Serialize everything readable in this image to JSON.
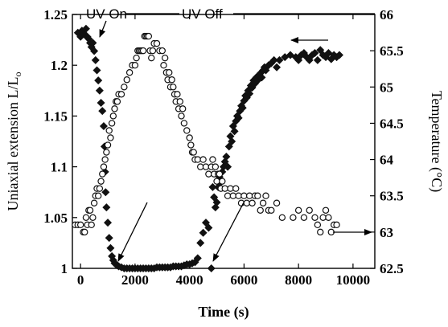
{
  "chart_data": {
    "type": "scatter",
    "xlabel": "Time (s)",
    "ylabel": "Uniaxial extension L/L",
    "ylabel_subscript": "o",
    "y2label": "Temperature (°C)",
    "xlim": [
      -300,
      10800
    ],
    "ylim": [
      1.0,
      1.25
    ],
    "y2lim": [
      62.5,
      66
    ],
    "x_ticks": [
      0,
      2000,
      4000,
      6000,
      8000,
      10000
    ],
    "y_ticks": [
      1,
      1.05,
      1.1,
      1.15,
      1.2,
      1.25
    ],
    "y2_ticks": [
      62.5,
      63,
      63.5,
      64,
      64.5,
      65,
      65.5,
      66
    ],
    "grid": false,
    "annotations": [
      {
        "text": "UV On"
      },
      {
        "text": "UV Off"
      }
    ],
    "series": [
      {
        "marker": "filled-diamond",
        "axis": "left",
        "points": [
          [
            -100,
            1.232
          ],
          [
            0,
            1.228
          ],
          [
            50,
            1.234
          ],
          [
            100,
            1.232
          ],
          [
            150,
            1.23
          ],
          [
            200,
            1.236
          ],
          [
            250,
            1.228
          ],
          [
            300,
            1.226
          ],
          [
            350,
            1.222
          ],
          [
            400,
            1.218
          ],
          [
            450,
            1.222
          ],
          [
            500,
            1.214
          ],
          [
            550,
            1.205
          ],
          [
            600,
            1.195
          ],
          [
            650,
            1.185
          ],
          [
            700,
            1.175
          ],
          [
            750,
            1.163
          ],
          [
            800,
            1.155
          ],
          [
            850,
            1.14
          ],
          [
            880,
            1.12
          ],
          [
            900,
            1.095
          ],
          [
            920,
            1.075
          ],
          [
            950,
            1.06
          ],
          [
            1000,
            1.045
          ],
          [
            1050,
            1.03
          ],
          [
            1100,
            1.02
          ],
          [
            1150,
            1.012
          ],
          [
            1200,
            1.008
          ],
          [
            1250,
            1.005
          ],
          [
            1300,
            1.004
          ],
          [
            1350,
            1.003
          ],
          [
            1400,
            1.002
          ],
          [
            1500,
            1.001
          ],
          [
            1600,
            1.0
          ],
          [
            1700,
            1.0
          ],
          [
            1800,
            1.0
          ],
          [
            1900,
            1.0
          ],
          [
            2000,
            1.0
          ],
          [
            2100,
            1.0
          ],
          [
            2200,
            1.0
          ],
          [
            2300,
            1.0
          ],
          [
            2400,
            1.0
          ],
          [
            2500,
            1.0
          ],
          [
            2600,
            1.0
          ],
          [
            2700,
            1.0
          ],
          [
            2800,
            1.001
          ],
          [
            2900,
            1.001
          ],
          [
            3000,
            1.001
          ],
          [
            3100,
            1.001
          ],
          [
            3200,
            1.001
          ],
          [
            3300,
            1.001
          ],
          [
            3400,
            1.002
          ],
          [
            3500,
            1.002
          ],
          [
            3600,
            1.002
          ],
          [
            3700,
            1.002
          ],
          [
            3800,
            1.003
          ],
          [
            3900,
            1.004
          ],
          [
            4000,
            1.004
          ],
          [
            4100,
            1.005
          ],
          [
            4200,
            1.006
          ],
          [
            4300,
            1.01
          ],
          [
            4400,
            1.025
          ],
          [
            4500,
            1.035
          ],
          [
            4600,
            1.045
          ],
          [
            4700,
            1.04
          ],
          [
            4800,
            1.0
          ],
          [
            4850,
            1.08
          ],
          [
            4900,
            1.07
          ],
          [
            4950,
            1.06
          ],
          [
            5000,
            1.065
          ],
          [
            5050,
            1.08
          ],
          [
            5100,
            1.09
          ],
          [
            5150,
            1.085
          ],
          [
            5200,
            1.095
          ],
          [
            5250,
            1.1
          ],
          [
            5300,
            1.105
          ],
          [
            5350,
            1.11
          ],
          [
            5400,
            1.1
          ],
          [
            5450,
            1.12
          ],
          [
            5500,
            1.13
          ],
          [
            5550,
            1.125
          ],
          [
            5600,
            1.14
          ],
          [
            5650,
            1.135
          ],
          [
            5700,
            1.145
          ],
          [
            5750,
            1.15
          ],
          [
            5800,
            1.148
          ],
          [
            5850,
            1.155
          ],
          [
            5900,
            1.16
          ],
          [
            5950,
            1.158
          ],
          [
            6000,
            1.165
          ],
          [
            6050,
            1.17
          ],
          [
            6100,
            1.168
          ],
          [
            6150,
            1.175
          ],
          [
            6200,
            1.172
          ],
          [
            6250,
            1.18
          ],
          [
            6300,
            1.178
          ],
          [
            6350,
            1.185
          ],
          [
            6400,
            1.182
          ],
          [
            6450,
            1.188
          ],
          [
            6500,
            1.185
          ],
          [
            6550,
            1.19
          ],
          [
            6600,
            1.192
          ],
          [
            6650,
            1.188
          ],
          [
            6700,
            1.195
          ],
          [
            6750,
            1.198
          ],
          [
            6800,
            1.195
          ],
          [
            6900,
            1.2
          ],
          [
            7000,
            1.202
          ],
          [
            7100,
            1.205
          ],
          [
            7200,
            1.198
          ],
          [
            7300,
            1.205
          ],
          [
            7500,
            1.208
          ],
          [
            7700,
            1.21
          ],
          [
            7900,
            1.208
          ],
          [
            8000,
            1.205
          ],
          [
            8100,
            1.21
          ],
          [
            8200,
            1.212
          ],
          [
            8300,
            1.208
          ],
          [
            8400,
            1.205
          ],
          [
            8500,
            1.21
          ],
          [
            8600,
            1.212
          ],
          [
            8700,
            1.205
          ],
          [
            8800,
            1.215
          ],
          [
            8900,
            1.21
          ],
          [
            9000,
            1.208
          ],
          [
            9100,
            1.212
          ],
          [
            9200,
            1.206
          ],
          [
            9300,
            1.21
          ],
          [
            9400,
            1.208
          ],
          [
            9500,
            1.21
          ]
        ]
      },
      {
        "marker": "open-circle",
        "axis": "right",
        "points": [
          [
            -200,
            63.1
          ],
          [
            -100,
            63.1
          ],
          [
            0,
            63.1
          ],
          [
            100,
            63.0
          ],
          [
            150,
            63.0
          ],
          [
            200,
            63.2
          ],
          [
            250,
            63.1
          ],
          [
            300,
            63.3
          ],
          [
            350,
            63.3
          ],
          [
            400,
            63.1
          ],
          [
            450,
            63.2
          ],
          [
            500,
            63.4
          ],
          [
            550,
            63.5
          ],
          [
            600,
            63.6
          ],
          [
            650,
            63.5
          ],
          [
            700,
            63.6
          ],
          [
            750,
            63.7
          ],
          [
            800,
            63.8
          ],
          [
            850,
            63.9
          ],
          [
            900,
            64.0
          ],
          [
            950,
            64.1
          ],
          [
            1000,
            64.2
          ],
          [
            1050,
            64.4
          ],
          [
            1100,
            64.3
          ],
          [
            1150,
            64.5
          ],
          [
            1200,
            64.6
          ],
          [
            1250,
            64.7
          ],
          [
            1300,
            64.8
          ],
          [
            1350,
            64.8
          ],
          [
            1400,
            64.9
          ],
          [
            1500,
            64.9
          ],
          [
            1600,
            65.0
          ],
          [
            1700,
            65.1
          ],
          [
            1800,
            65.2
          ],
          [
            1900,
            65.3
          ],
          [
            2000,
            65.3
          ],
          [
            2050,
            65.4
          ],
          [
            2100,
            65.5
          ],
          [
            2150,
            65.5
          ],
          [
            2200,
            65.5
          ],
          [
            2250,
            65.5
          ],
          [
            2300,
            65.5
          ],
          [
            2350,
            65.7
          ],
          [
            2400,
            65.7
          ],
          [
            2450,
            65.7
          ],
          [
            2500,
            65.7
          ],
          [
            2550,
            65.5
          ],
          [
            2600,
            65.4
          ],
          [
            2650,
            65.5
          ],
          [
            2700,
            65.6
          ],
          [
            2800,
            65.6
          ],
          [
            2900,
            65.5
          ],
          [
            3000,
            65.5
          ],
          [
            3050,
            65.3
          ],
          [
            3100,
            65.4
          ],
          [
            3150,
            65.2
          ],
          [
            3200,
            65.1
          ],
          [
            3250,
            65.2
          ],
          [
            3300,
            65.0
          ],
          [
            3350,
            65.1
          ],
          [
            3400,
            65.0
          ],
          [
            3450,
            64.9
          ],
          [
            3500,
            64.8
          ],
          [
            3550,
            64.9
          ],
          [
            3600,
            64.7
          ],
          [
            3650,
            64.8
          ],
          [
            3700,
            64.6
          ],
          [
            3750,
            64.7
          ],
          [
            3800,
            64.5
          ],
          [
            3900,
            64.4
          ],
          [
            4000,
            64.3
          ],
          [
            4050,
            64.2
          ],
          [
            4100,
            64.1
          ],
          [
            4150,
            64.1
          ],
          [
            4200,
            64.0
          ],
          [
            4300,
            64.0
          ],
          [
            4400,
            63.9
          ],
          [
            4500,
            64.0
          ],
          [
            4600,
            63.9
          ],
          [
            4700,
            63.8
          ],
          [
            4800,
            63.9
          ],
          [
            4850,
            64.0
          ],
          [
            4900,
            63.8
          ],
          [
            4950,
            63.9
          ],
          [
            5000,
            63.7
          ],
          [
            5050,
            63.8
          ],
          [
            5100,
            63.8
          ],
          [
            5150,
            63.6
          ],
          [
            5200,
            63.7
          ],
          [
            5300,
            63.6
          ],
          [
            5400,
            63.5
          ],
          [
            5500,
            63.6
          ],
          [
            5600,
            63.5
          ],
          [
            5700,
            63.6
          ],
          [
            5800,
            63.5
          ],
          [
            5900,
            63.4
          ],
          [
            6000,
            63.5
          ],
          [
            6100,
            63.4
          ],
          [
            6200,
            63.5
          ],
          [
            6300,
            63.4
          ],
          [
            6400,
            63.5
          ],
          [
            6500,
            63.5
          ],
          [
            6600,
            63.3
          ],
          [
            6700,
            63.4
          ],
          [
            6800,
            63.5
          ],
          [
            6900,
            63.3
          ],
          [
            7000,
            63.3
          ],
          [
            7200,
            63.4
          ],
          [
            7400,
            63.2
          ],
          [
            7800,
            63.2
          ],
          [
            8000,
            63.3
          ],
          [
            8200,
            63.2
          ],
          [
            8400,
            63.3
          ],
          [
            8600,
            63.2
          ],
          [
            8700,
            63.1
          ],
          [
            8800,
            63.0
          ],
          [
            8900,
            63.2
          ],
          [
            9000,
            63.3
          ],
          [
            9100,
            63.2
          ],
          [
            9200,
            63.0
          ],
          [
            9300,
            63.1
          ],
          [
            9400,
            63.1
          ]
        ]
      }
    ]
  }
}
